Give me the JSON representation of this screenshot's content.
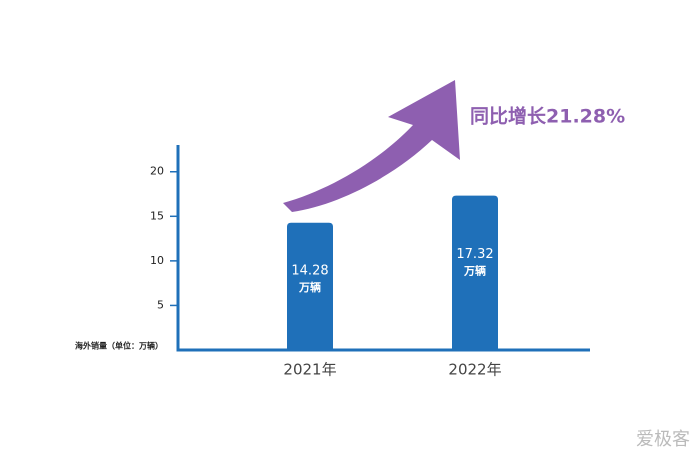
{
  "chart_data": {
    "type": "bar",
    "y_axis_label": "海外销量（单位：万辆）",
    "categories": [
      "2021年",
      "2022年"
    ],
    "values": [
      14.28,
      17.32
    ],
    "unit_label": "万辆",
    "color": "#1f70b9",
    "ylim": [
      0,
      23
    ],
    "yticks": [
      5,
      10,
      15,
      20
    ],
    "annotation": "同比增长21.28%",
    "watermark": "爱极客"
  }
}
